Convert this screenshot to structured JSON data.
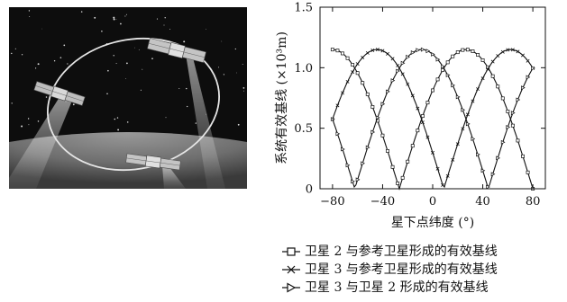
{
  "illustration": {
    "scene": "satellite-formation-illustration",
    "colors": {
      "space": "#0d0d0d",
      "earth": "#7a7a7a",
      "orbit": "#e6e6e6"
    }
  },
  "chart_data": {
    "type": "line",
    "xlabel": "星下点纬度 (°)",
    "ylabel": "系统有效基线 (×10³m)",
    "xlim": [
      -90,
      90
    ],
    "ylim": [
      0,
      1.5
    ],
    "x_ticks": [
      -80,
      -40,
      0,
      40,
      80
    ],
    "x_tick_labels": [
      "−80",
      "−40",
      "0",
      "40",
      "80"
    ],
    "y_ticks": [
      0,
      0.5,
      1.0,
      1.5
    ],
    "y_tick_labels": [
      "0",
      "0.5",
      "1.0",
      "1.5"
    ],
    "grid": false,
    "legend_position": "bottom",
    "series": [
      {
        "name": "卫星 2 与参考卫星形成的有效基线",
        "marker": "square",
        "marker_label": "−□−",
        "phase_deg": 0
      },
      {
        "name": "卫星 3 与参考卫星形成的有效基线",
        "marker": "x",
        "marker_label": "−×−",
        "phase_deg": 120
      },
      {
        "name": "卫星 3 与卫星 2 形成的有效基线",
        "marker": "triangle-right",
        "marker_label": "−▷−",
        "phase_deg": 240
      }
    ],
    "curve_model": {
      "max_baseline": 1.15,
      "cycles_over_range": 1.5,
      "points_per_curve": 120
    }
  }
}
